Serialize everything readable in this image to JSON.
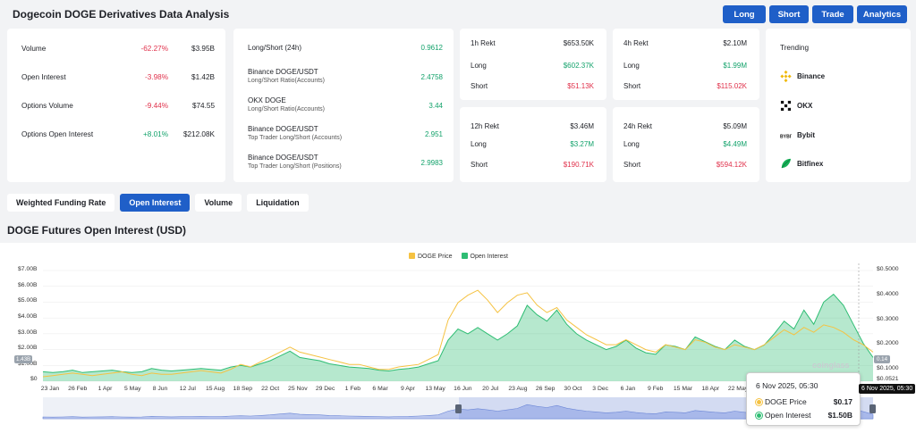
{
  "header": {
    "title": "Dogecoin DOGE Derivatives Data Analysis",
    "buttons": {
      "long": "Long",
      "short": "Short",
      "trade": "Trade",
      "analytics": "Analytics"
    }
  },
  "stats": [
    {
      "label": "Volume",
      "change": "-62.27%",
      "value": "$3.95B",
      "trend": "neg"
    },
    {
      "label": "Open Interest",
      "change": "-3.98%",
      "value": "$1.42B",
      "trend": "neg"
    },
    {
      "label": "Options Volume",
      "change": "-9.44%",
      "value": "$74.55",
      "trend": "neg"
    },
    {
      "label": "Options Open Interest",
      "change": "+8.01%",
      "value": "$212.08K",
      "trend": "pos"
    }
  ],
  "long_short": {
    "main_label": "Long/Short (24h)",
    "main_value": "0.9612",
    "items": [
      {
        "label": "Binance DOGE/USDT",
        "sub": "Long/Short Ratio(Accounts)",
        "value": "2.4758"
      },
      {
        "label": "OKX DOGE",
        "sub": "Long/Short Ratio(Accounts)",
        "value": "3.44"
      },
      {
        "label": "Binance DOGE/USDT",
        "sub": "Top Trader Long/Short (Accounts)",
        "value": "2.951"
      },
      {
        "label": "Binance DOGE/USDT",
        "sub": "Top Trader Long/Short (Positions)",
        "value": "2.9983"
      }
    ]
  },
  "rekt": [
    {
      "title": "1h Rekt",
      "total": "$653.50K",
      "long_label": "Long",
      "long": "$602.37K",
      "short_label": "Short",
      "short": "$51.13K"
    },
    {
      "title": "4h Rekt",
      "total": "$2.10M",
      "long_label": "Long",
      "long": "$1.99M",
      "short_label": "Short",
      "short": "$115.02K"
    },
    {
      "title": "12h Rekt",
      "total": "$3.46M",
      "long_label": "Long",
      "long": "$3.27M",
      "short_label": "Short",
      "short": "$190.71K"
    },
    {
      "title": "24h Rekt",
      "total": "$5.09M",
      "long_label": "Long",
      "long": "$4.49M",
      "short_label": "Short",
      "short": "$594.12K"
    }
  ],
  "trending": {
    "title": "Trending",
    "items": [
      {
        "name": "Binance",
        "icon": "binance-icon"
      },
      {
        "name": "OKX",
        "icon": "okx-icon"
      },
      {
        "name": "Bybit",
        "icon": "bybit-icon"
      },
      {
        "name": "Bitfinex",
        "icon": "bitfinex-icon"
      }
    ]
  },
  "tabs": [
    "Weighted Funding Rate",
    "Open Interest",
    "Volume",
    "Liquidation"
  ],
  "active_tab": "Open Interest",
  "chart_title": "DOGE Futures Open Interest (USD)",
  "colors": {
    "accent": "#1f5fc8",
    "doge_price": "#f5c242",
    "open_interest": "#2ebd73",
    "negative": "#e0314b",
    "positive": "#13a26b"
  },
  "chart_data": {
    "type": "area",
    "legend": [
      "DOGE Price",
      "Open Interest"
    ],
    "legend_position": "top-center",
    "y_left_ticks": [
      "$0",
      "$1.00B",
      "$2.00B",
      "$3.00B",
      "$4.00B",
      "$5.00B",
      "$6.00B",
      "$7.00B"
    ],
    "y_right_ticks": [
      "$0.0521",
      "$0.1000",
      "$0.2000",
      "$0.3000",
      "$0.4000",
      "$0.5000"
    ],
    "x_ticks": [
      "23 Jan",
      "26 Feb",
      "1 Apr",
      "5 May",
      "8 Jun",
      "12 Jul",
      "15 Aug",
      "18 Sep",
      "22 Oct",
      "25 Nov",
      "29 Dec",
      "1 Feb",
      "6 Mar",
      "9 Apr",
      "13 May",
      "16 Jun",
      "20 Jul",
      "23 Aug",
      "26 Sep",
      "30 Oct",
      "3 Dec",
      "6 Jan",
      "9 Feb",
      "15 Mar",
      "18 Apr",
      "22 May"
    ],
    "ylim_left": [
      0,
      7.0
    ],
    "ylim_right": [
      0.0521,
      0.5
    ],
    "open_interest_b": [
      0.6,
      0.55,
      0.6,
      0.7,
      0.55,
      0.6,
      0.65,
      0.7,
      0.6,
      0.55,
      0.6,
      0.8,
      0.7,
      0.65,
      0.7,
      0.75,
      0.8,
      0.75,
      0.7,
      0.9,
      1.0,
      0.9,
      1.1,
      1.3,
      1.6,
      1.9,
      1.5,
      1.4,
      1.3,
      1.1,
      1.0,
      0.9,
      0.85,
      0.8,
      0.7,
      0.65,
      0.75,
      0.8,
      0.9,
      1.1,
      1.3,
      2.6,
      3.3,
      3.0,
      3.4,
      3.0,
      2.6,
      3.0,
      3.5,
      4.8,
      4.2,
      3.8,
      4.5,
      3.6,
      3.0,
      2.6,
      2.3,
      2.0,
      2.2,
      2.6,
      2.1,
      1.8,
      1.7,
      2.3,
      2.2,
      2.0,
      2.8,
      2.5,
      2.2,
      2.0,
      2.6,
      2.2,
      2.0,
      2.3,
      3.0,
      3.8,
      3.3,
      4.5,
      3.6,
      5.0,
      5.5,
      4.8,
      3.6,
      2.4,
      1.5
    ],
    "doge_price": [
      0.07,
      0.075,
      0.08,
      0.085,
      0.08,
      0.075,
      0.08,
      0.085,
      0.09,
      0.08,
      0.075,
      0.085,
      0.08,
      0.08,
      0.085,
      0.09,
      0.095,
      0.09,
      0.085,
      0.1,
      0.12,
      0.11,
      0.13,
      0.15,
      0.17,
      0.19,
      0.17,
      0.16,
      0.15,
      0.14,
      0.13,
      0.12,
      0.12,
      0.11,
      0.1,
      0.1,
      0.11,
      0.115,
      0.12,
      0.14,
      0.16,
      0.3,
      0.37,
      0.4,
      0.42,
      0.38,
      0.33,
      0.37,
      0.4,
      0.41,
      0.36,
      0.33,
      0.35,
      0.3,
      0.27,
      0.24,
      0.22,
      0.2,
      0.2,
      0.22,
      0.2,
      0.18,
      0.17,
      0.2,
      0.19,
      0.18,
      0.22,
      0.21,
      0.19,
      0.18,
      0.2,
      0.19,
      0.18,
      0.2,
      0.23,
      0.26,
      0.24,
      0.27,
      0.25,
      0.28,
      0.27,
      0.25,
      0.22,
      0.2,
      0.17
    ],
    "markers": {
      "left_value": "1.43B",
      "right_value": "0.14"
    }
  },
  "tooltip": {
    "date": "6 Nov 2025, 05:30",
    "rows": [
      {
        "label": "DOGE Price",
        "value": "$0.17"
      },
      {
        "label": "Open Interest",
        "value": "$1.50B"
      }
    ],
    "date_flag": "6 Nov 2025, 05:30"
  },
  "watermark": "coinglass"
}
